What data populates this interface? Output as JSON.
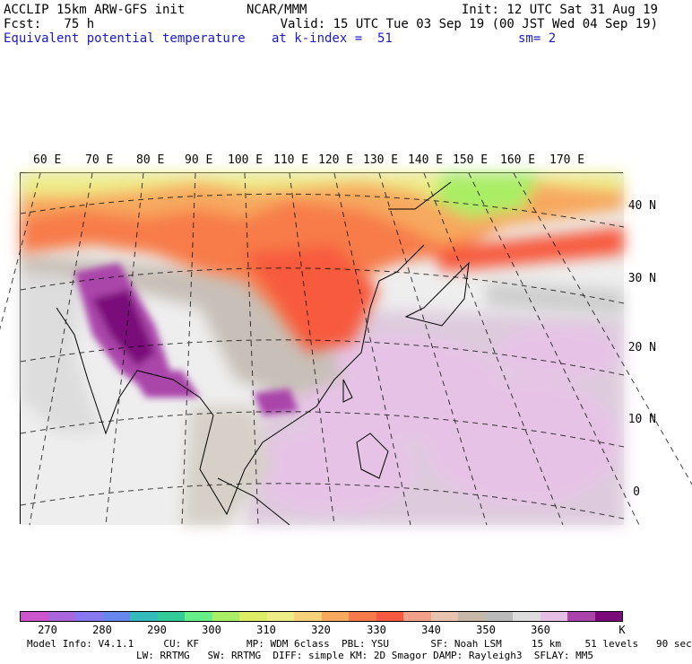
{
  "header": {
    "line1_left": "ACCLIP 15km ARW-GFS init",
    "line1_center": "NCAR/MMM",
    "line1_right": "Init: 12 UTC Sat 31 Aug 19",
    "line2_left": "Fcst:   75 h",
    "line2_right": "Valid: 15 UTC Tue 03 Sep 19 (00 JST Wed 04 Sep 19)",
    "line3_left": "Equivalent potential temperature",
    "line3_center": "at k-index =  51",
    "line3_right": "sm= 2"
  },
  "lon_labels": [
    "60 E",
    "70 E",
    "80 E",
    "90 E",
    "100 E",
    "110 E",
    "120 E",
    "130 E",
    "140 E",
    "150 E",
    "160 E",
    "170 E"
  ],
  "lat_labels": [
    "40 N",
    "30 N",
    "20 N",
    "10 N",
    "0"
  ],
  "colorbar": {
    "colors": [
      "#cc55cc",
      "#aa66dd",
      "#8877ee",
      "#6688ee",
      "#33bbbb",
      "#33cc99",
      "#66ee88",
      "#aaee66",
      "#ddee66",
      "#eeee88",
      "#f7d27a",
      "#f7a95e",
      "#f77b4a",
      "#f75a3e",
      "#f2a08a",
      "#e8c4b0",
      "#c8b8a8",
      "#bbbbbb",
      "#dddddd",
      "#e6bfe6",
      "#aa44aa",
      "#7a0a7a"
    ],
    "ticks": [
      "270",
      "280",
      "290",
      "300",
      "310",
      "320",
      "330",
      "340",
      "350",
      "360"
    ],
    "unit": "K"
  },
  "footer": {
    "line1": "Model Info: V4.1.1     CU: KF        MP: WDM 6class  PBL: YSU       SF: Noah LSM     15 km    51 levels   90 sec",
    "line2": "LW: RRTMG   SW: RRTMG  DIFF: simple KM: 2D Smagor DAMP: Rayleigh3  SFLAY: MM5"
  }
}
